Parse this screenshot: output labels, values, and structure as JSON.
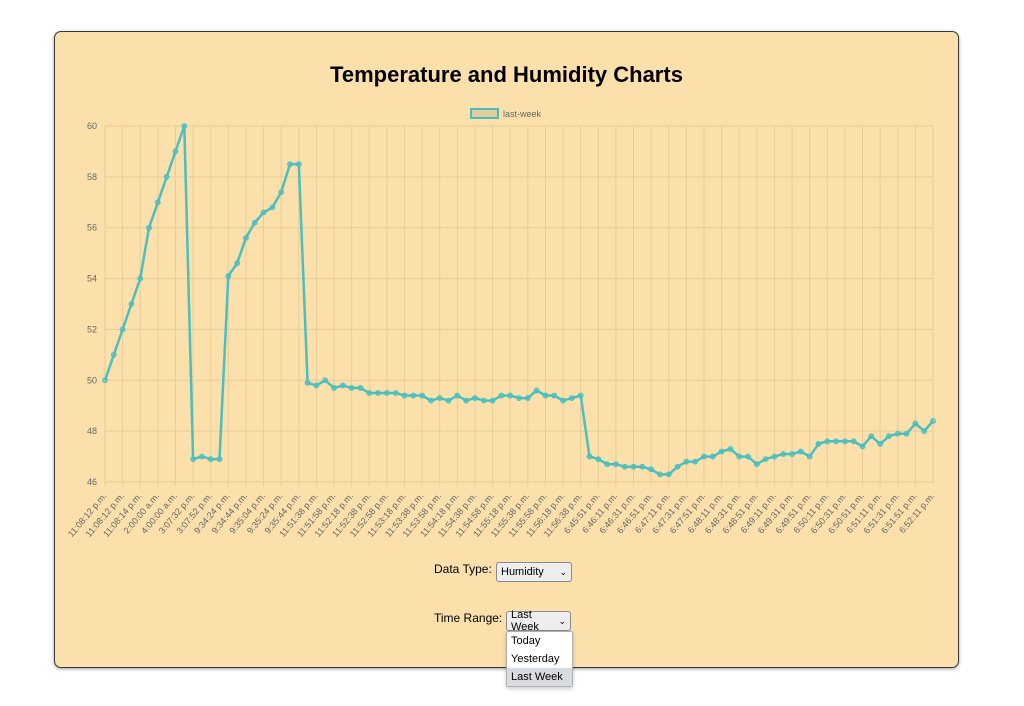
{
  "page": {
    "title": "Temperature and Humidity Charts"
  },
  "controls": {
    "data_type": {
      "label": "Data Type:",
      "value": "Humidity"
    },
    "time_range": {
      "label": "Time Range:",
      "value": "Last Week",
      "options": [
        "Today",
        "Yesterday",
        "Last Week"
      ],
      "selected_index": 2,
      "open": true
    }
  },
  "colors": {
    "panel_bg": "#fbe0ab",
    "line": "#4bbfbf",
    "legend_fill": "#e3cda0",
    "grid": "#e8cc96",
    "tick_text": "#666666"
  },
  "chart_data": {
    "type": "line",
    "title": "Temperature and Humidity Charts",
    "legend": [
      "last-week"
    ],
    "legend_position": "top",
    "xlabel": "",
    "ylabel": "",
    "ylim": [
      46,
      60
    ],
    "yticks": [
      46,
      48,
      50,
      52,
      54,
      56,
      58,
      60
    ],
    "grid": true,
    "x_tick_labels": [
      "11:08:12 p.m.",
      "11:08:12 p.m.",
      "11:08:14 p.m.",
      "2:00:00 a.m.",
      "4:00:00 a.m.",
      "3:07:32 p.m.",
      "3:07:52 p.m.",
      "9:34:24 p.m.",
      "9:34:44 p.m.",
      "9:35:04 p.m.",
      "9:35:24 p.m.",
      "9:35:44 p.m.",
      "11:51:38 p.m.",
      "11:51:58 p.m.",
      "11:52:18 p.m.",
      "11:52:38 p.m.",
      "11:52:58 p.m.",
      "11:53:18 p.m.",
      "11:53:38 p.m.",
      "11:53:58 p.m.",
      "11:54:18 p.m.",
      "11:54:38 p.m.",
      "11:54:58 p.m.",
      "11:55:18 p.m.",
      "11:55:38 p.m.",
      "11:55:58 p.m.",
      "11:56:18 p.m.",
      "11:56:38 p.m.",
      "6:45:51 p.m.",
      "6:46:11 p.m.",
      "6:46:31 p.m.",
      "6:46:51 p.m.",
      "6:47:11 p.m.",
      "6:47:31 p.m.",
      "6:47:51 p.m.",
      "6:48:11 p.m.",
      "6:48:31 p.m.",
      "6:48:51 p.m.",
      "6:49:11 p.m.",
      "6:49:31 p.m.",
      "6:49:51 p.m.",
      "6:50:11 p.m.",
      "6:50:31 p.m.",
      "6:50:51 p.m.",
      "6:51:11 p.m.",
      "6:51:31 p.m.",
      "6:51:51 p.m.",
      "6:52:11 p.m."
    ],
    "series": [
      {
        "name": "last-week",
        "values": [
          50,
          51,
          52,
          53,
          54,
          56,
          57,
          58,
          59,
          60,
          46.9,
          47,
          46.9,
          46.9,
          54.1,
          54.6,
          55.6,
          56.2,
          56.6,
          56.8,
          57.4,
          58.5,
          58.5,
          49.9,
          49.8,
          50,
          49.7,
          49.8,
          49.7,
          49.7,
          49.5,
          49.5,
          49.5,
          49.5,
          49.4,
          49.4,
          49.4,
          49.2,
          49.3,
          49.2,
          49.4,
          49.2,
          49.3,
          49.2,
          49.2,
          49.4,
          49.4,
          49.3,
          49.3,
          49.6,
          49.4,
          49.4,
          49.2,
          49.3,
          49.4,
          47,
          46.9,
          46.7,
          46.7,
          46.6,
          46.6,
          46.6,
          46.5,
          46.3,
          46.3,
          46.6,
          46.8,
          46.8,
          47,
          47,
          47.2,
          47.3,
          47,
          47,
          46.7,
          46.9,
          47,
          47.1,
          47.1,
          47.2,
          47,
          47.5,
          47.6,
          47.6,
          47.6,
          47.6,
          47.4,
          47.8,
          47.5,
          47.8,
          47.9,
          47.9,
          48.3,
          48,
          48.4
        ]
      }
    ]
  }
}
